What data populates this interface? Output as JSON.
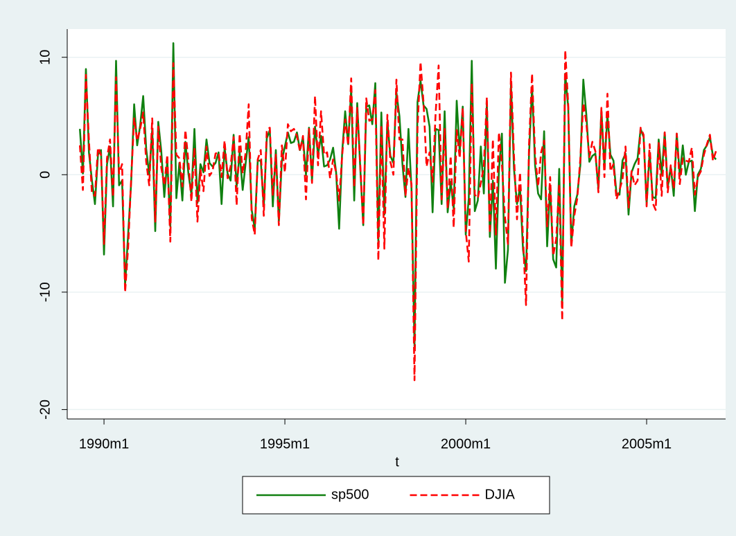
{
  "chart_data": {
    "type": "line",
    "x_label": "t",
    "x": [
      352,
      353,
      354,
      355,
      356,
      357,
      358,
      359,
      360,
      361,
      362,
      363,
      364,
      365,
      366,
      367,
      368,
      369,
      370,
      371,
      372,
      373,
      374,
      375,
      376,
      377,
      378,
      379,
      380,
      381,
      382,
      383,
      384,
      385,
      386,
      387,
      388,
      389,
      390,
      391,
      392,
      393,
      394,
      395,
      396,
      397,
      398,
      399,
      400,
      401,
      402,
      403,
      404,
      405,
      406,
      407,
      408,
      409,
      410,
      411,
      412,
      413,
      414,
      415,
      416,
      417,
      418,
      419,
      420,
      421,
      422,
      423,
      424,
      425,
      426,
      427,
      428,
      429,
      430,
      431,
      432,
      433,
      434,
      435,
      436,
      437,
      438,
      439,
      440,
      441,
      442,
      443,
      444,
      445,
      446,
      447,
      448,
      449,
      450,
      451,
      452,
      453,
      454,
      455,
      456,
      457,
      458,
      459,
      460,
      461,
      462,
      463,
      464,
      465,
      466,
      467,
      468,
      469,
      470,
      471,
      472,
      473,
      474,
      475,
      476,
      477,
      478,
      479,
      480,
      481,
      482,
      483,
      484,
      485,
      486,
      487,
      488,
      489,
      490,
      491,
      492,
      493,
      494,
      495,
      496,
      497,
      498,
      499,
      500,
      501,
      502,
      503,
      504,
      505,
      506,
      507,
      508,
      509,
      510,
      511,
      512,
      513,
      514,
      515,
      516,
      517,
      518,
      519,
      520,
      521,
      522,
      523,
      524,
      525,
      526,
      527,
      528,
      529,
      530,
      531,
      532,
      533,
      534,
      535,
      536,
      537,
      538,
      539,
      540,
      541,
      542,
      543,
      544,
      545,
      546,
      547,
      548,
      549,
      550,
      551,
      552,
      553,
      554,
      555,
      556,
      557,
      558,
      559,
      560,
      561,
      562,
      563
    ],
    "series": [
      {
        "name": "sp500",
        "color": "#108010",
        "dash": false,
        "values": [
          3.9,
          0.1,
          9.0,
          1.9,
          -0.5,
          -2.5,
          1.7,
          2.1,
          -6.8,
          0.9,
          2.4,
          -2.7,
          9.7,
          -0.9,
          -0.5,
          -9.4,
          -5.1,
          -0.7,
          6.0,
          2.5,
          4.2,
          6.7,
          2.2,
          0.0,
          3.9,
          -4.8,
          4.5,
          2.0,
          -1.9,
          1.2,
          -4.4,
          11.2,
          -2.0,
          1.0,
          -2.2,
          2.8,
          0.1,
          -1.7,
          3.9,
          -2.4,
          0.9,
          0.2,
          3.0,
          1.0,
          0.7,
          1.0,
          1.9,
          -2.5,
          2.3,
          0.1,
          -0.5,
          3.4,
          -1.0,
          1.9,
          -1.3,
          1.0,
          3.2,
          -3.0,
          -4.6,
          1.2,
          1.2,
          -2.7,
          3.1,
          3.8,
          -2.7,
          2.1,
          -4.0,
          1.2,
          2.4,
          3.6,
          2.7,
          2.8,
          3.6,
          2.1,
          3.2,
          -0.03,
          4.0,
          -0.5,
          4.1,
          1.7,
          3.3,
          0.7,
          0.8,
          1.3,
          2.3,
          0.2,
          -4.6,
          1.9,
          5.4,
          2.6,
          7.3,
          -2.2,
          6.1,
          0.6,
          -4.3,
          5.8,
          5.9,
          4.3,
          7.8,
          -5.7,
          5.3,
          -3.4,
          4.5,
          1.6,
          1.0,
          7.0,
          5.0,
          0.9,
          -1.9,
          3.9,
          -1.2,
          -14.6,
          6.2,
          8.0,
          5.9,
          5.6,
          4.1,
          -3.2,
          3.9,
          3.8,
          -2.5,
          5.4,
          -3.2,
          -0.6,
          -2.9,
          6.3,
          1.9,
          5.8,
          -5.1,
          -2.0,
          9.7,
          -3.1,
          -2.2,
          2.4,
          -1.6,
          6.1,
          -5.3,
          -0.5,
          -8.0,
          0.4,
          3.5,
          -9.2,
          -6.4,
          7.7,
          0.5,
          -2.5,
          -1.1,
          -6.4,
          -8.2,
          1.8,
          7.5,
          0.8,
          -1.6,
          -2.1,
          3.7,
          -6.1,
          -0.9,
          -7.2,
          -7.9,
          0.5,
          -11.0,
          8.6,
          5.7,
          -6.0,
          -2.7,
          -1.7,
          0.8,
          8.1,
          5.1,
          1.1,
          1.6,
          1.8,
          -1.2,
          5.5,
          0.7,
          5.1,
          1.7,
          1.2,
          -1.6,
          -1.7,
          1.2,
          1.8,
          -3.4,
          0.2,
          0.9,
          1.4,
          3.9,
          3.2,
          -2.5,
          1.9,
          -1.9,
          -2.0,
          3.0,
          0.0,
          3.6,
          -1.1,
          0.7,
          -1.8,
          3.5,
          -0.1,
          2.5,
          0.0,
          1.1,
          1.2,
          -3.1,
          0.0,
          0.5,
          2.1,
          2.5,
          3.2,
          1.6,
          1.3
        ]
      },
      {
        "name": "DJIA",
        "color": "#ff0000",
        "dash": true,
        "values": [
          2.5,
          -1.3,
          8.5,
          2.9,
          -1.6,
          -1.8,
          2.3,
          1.7,
          -5.9,
          1.4,
          3.0,
          -1.9,
          8.3,
          0.1,
          0.9,
          -10.0,
          -6.2,
          -0.4,
          4.8,
          2.9,
          3.9,
          5.3,
          1.1,
          -0.9,
          4.8,
          -4.0,
          4.1,
          0.6,
          -0.9,
          1.7,
          -5.7,
          9.5,
          1.7,
          1.4,
          -1.0,
          3.8,
          1.1,
          -2.3,
          2.3,
          -4.0,
          0.4,
          -1.4,
          2.4,
          -0.1,
          0.3,
          1.8,
          1.9,
          -0.2,
          2.9,
          -0.3,
          0.7,
          3.2,
          -2.6,
          3.5,
          0.1,
          1.9,
          6.0,
          -3.7,
          -5.1,
          1.3,
          2.1,
          -3.5,
          3.8,
          4.0,
          -1.8,
          1.7,
          -4.3,
          2.5,
          0.2,
          4.3,
          3.7,
          3.9,
          3.3,
          2.0,
          3.3,
          -2.1,
          3.9,
          -0.7,
          6.7,
          0.8,
          5.4,
          1.7,
          1.9,
          -0.3,
          1.3,
          0.2,
          -2.2,
          1.6,
          4.7,
          2.5,
          8.2,
          -1.1,
          5.7,
          0.9,
          -4.3,
          6.5,
          4.6,
          4.7,
          7.2,
          -7.3,
          4.2,
          -6.3,
          5.1,
          1.1,
          0.0,
          8.1,
          3.0,
          3.0,
          -1.8,
          0.6,
          -0.8,
          -17.5,
          4.0,
          9.6,
          6.1,
          0.7,
          1.9,
          -0.6,
          5.2,
          9.3,
          -2.1,
          3.9,
          -2.9,
          1.6,
          -4.5,
          3.8,
          1.4,
          5.7,
          -4.8,
          -7.4,
          7.8,
          -1.7,
          -2.0,
          -0.7,
          0.7,
          6.6,
          -5.0,
          3.0,
          -5.1,
          3.6,
          0.9,
          -3.6,
          -5.9,
          8.7,
          1.6,
          -3.8,
          0.2,
          -5.4,
          -11.1,
          2.6,
          8.6,
          1.7,
          -1.0,
          1.9,
          2.9,
          -4.4,
          -0.2,
          -6.9,
          -5.5,
          -0.8,
          -12.4,
          10.6,
          5.9,
          -6.2,
          -3.5,
          -2.0,
          1.3,
          6.1,
          4.4,
          1.5,
          2.8,
          2.0,
          -1.5,
          5.7,
          -0.2,
          6.9,
          0.3,
          0.9,
          -2.1,
          -1.3,
          -0.4,
          2.4,
          -2.8,
          0.3,
          -0.9,
          -0.5,
          4.0,
          3.4,
          -2.7,
          2.6,
          -2.4,
          -3.0,
          2.7,
          -1.8,
          3.6,
          -1.5,
          0.8,
          -1.2,
          3.5,
          -0.8,
          1.4,
          1.2,
          1.1,
          2.3,
          -1.7,
          -0.2,
          0.3,
          1.7,
          2.6,
          3.4,
          1.2,
          2.0
        ]
      }
    ],
    "xlim": [
      347.8,
      566.2
    ],
    "xticks": [
      {
        "value": 360,
        "label": "1990m1"
      },
      {
        "value": 420,
        "label": "1995m1"
      },
      {
        "value": 480,
        "label": "2000m1"
      },
      {
        "value": 540,
        "label": "2005m1"
      }
    ],
    "ylim": [
      -20.8,
      12.4
    ],
    "yticks": [
      -20,
      -10,
      0,
      10
    ],
    "grid": true,
    "legend": "bottom"
  }
}
